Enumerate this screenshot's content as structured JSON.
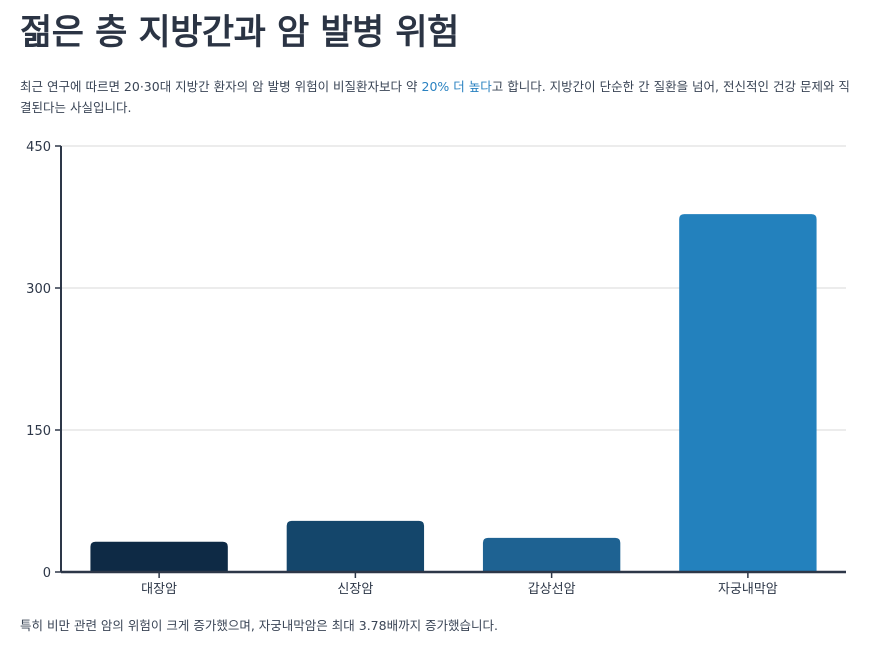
{
  "title": "젊은 층 지방간과 암 발병 위험",
  "intro": {
    "before": "최근 연구에 따르면 20·30대 지방간 환자의 암 발병 위험이 비질환자보다 약 ",
    "highlight": "20% 더 높다",
    "after": "고 합니다. 지방간이 단순한 간 질환을 넘어, 전신적인 건강 문제와 직결된다는 사실입니다."
  },
  "note": "특히 비만 관련 암의 위험이 크게 증가했으며, 자궁내막암은 최대 3.78배까지 증가했습니다.",
  "chart_data": {
    "type": "bar",
    "title": "",
    "xlabel": "",
    "ylabel": "",
    "categories": [
      "대장암",
      "신장암",
      "갑상선암",
      "자궁내막암"
    ],
    "values": [
      32,
      54,
      36,
      378
    ],
    "ylim": [
      0,
      450
    ],
    "yticks": [
      0,
      150,
      300,
      450
    ],
    "grid": true,
    "colors": [
      "#0e2a45",
      "#14466b",
      "#1e6292",
      "#2381bd"
    ]
  },
  "colors": {
    "highlight": "#2a82c1",
    "axis": "#2d3748",
    "grid": "#d9d9d9"
  }
}
